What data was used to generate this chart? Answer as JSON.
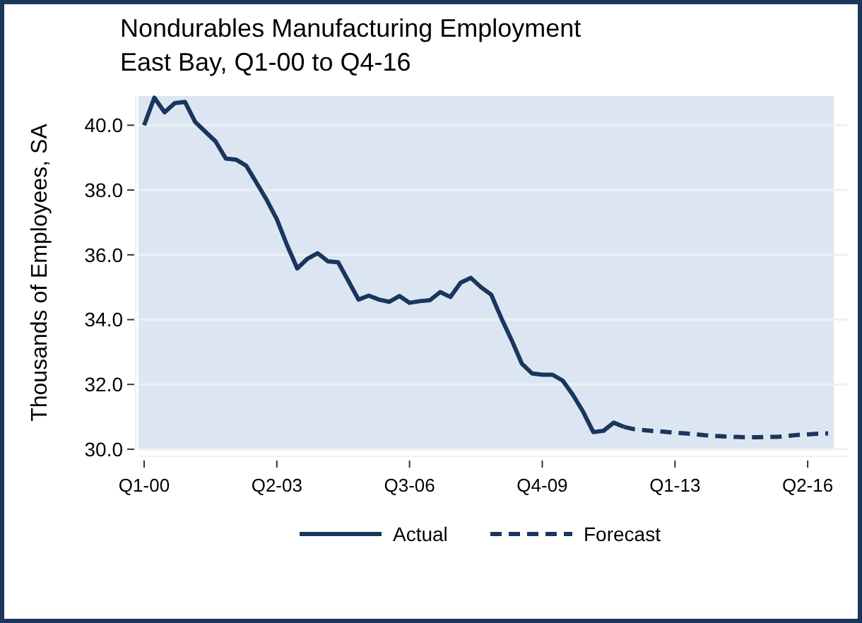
{
  "chart_data": {
    "type": "line",
    "title": "Nondurables Manufacturing Employment",
    "subtitle": "East Bay, Q1-00 to Q4-16",
    "ylabel": "Thousands of Employees, SA",
    "categories": [
      "Q1-00",
      null,
      null,
      null,
      null,
      null,
      null,
      null,
      null,
      null,
      null,
      null,
      null,
      "Q2-03",
      null,
      null,
      null,
      null,
      null,
      null,
      null,
      null,
      null,
      null,
      null,
      null,
      "Q3-06",
      null,
      null,
      null,
      null,
      null,
      null,
      null,
      null,
      null,
      null,
      null,
      null,
      "Q4-09",
      null,
      null,
      null,
      null,
      null,
      null,
      null,
      null,
      null,
      null,
      null,
      null,
      "Q1-13",
      null,
      null,
      null,
      null,
      null,
      null,
      null,
      null,
      null,
      null,
      null,
      null,
      "Q2-16",
      null,
      null
    ],
    "series": [
      {
        "name": "Actual",
        "color": "#1b365d",
        "line_style": "solid",
        "values": [
          40.0,
          40.85,
          40.4,
          40.68,
          40.72,
          40.1,
          39.8,
          39.5,
          38.97,
          38.94,
          38.75,
          38.23,
          37.7,
          37.1,
          36.3,
          35.58,
          35.88,
          36.05,
          35.8,
          35.77,
          35.2,
          34.62,
          34.74,
          34.62,
          34.55,
          34.73,
          34.52,
          34.57,
          34.6,
          34.85,
          34.7,
          35.14,
          35.29,
          35.0,
          34.77,
          34.04,
          33.37,
          32.64,
          32.34,
          32.3,
          32.3,
          32.12,
          31.68,
          31.16,
          30.53,
          30.57,
          30.82,
          30.69,
          null,
          null,
          null,
          null,
          null,
          null,
          null,
          null,
          null,
          null,
          null,
          null,
          null,
          null,
          null,
          null,
          null,
          null,
          null,
          null
        ]
      },
      {
        "name": "Forecast",
        "color": "#1b365d",
        "line_style": "dashed",
        "values": [
          null,
          null,
          null,
          null,
          null,
          null,
          null,
          null,
          null,
          null,
          null,
          null,
          null,
          null,
          null,
          null,
          null,
          null,
          null,
          null,
          null,
          null,
          null,
          null,
          null,
          null,
          null,
          null,
          null,
          null,
          null,
          null,
          null,
          null,
          null,
          null,
          null,
          null,
          null,
          null,
          null,
          null,
          null,
          null,
          null,
          null,
          null,
          30.69,
          30.62,
          30.59,
          30.56,
          30.54,
          30.51,
          30.49,
          30.46,
          30.43,
          30.41,
          30.39,
          30.38,
          30.37,
          30.37,
          30.38,
          30.38,
          30.41,
          30.44,
          30.46,
          30.48,
          30.49
        ]
      }
    ],
    "ylim": [
      30,
      40.9
    ],
    "yticks": [
      {
        "value": 30,
        "label": "30.0"
      },
      {
        "value": 32,
        "label": "32.0"
      },
      {
        "value": 34,
        "label": "34.0"
      },
      {
        "value": 36,
        "label": "36.0"
      },
      {
        "value": 38,
        "label": "38.0"
      },
      {
        "value": 40,
        "label": "40.0"
      }
    ],
    "grid": "y",
    "legend": "bottom",
    "marker": "none"
  }
}
